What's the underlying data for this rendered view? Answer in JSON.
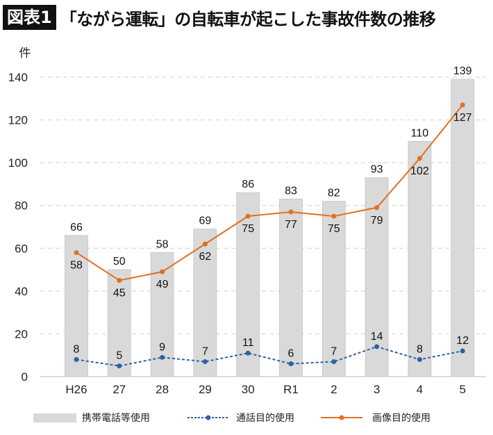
{
  "header": {
    "badge": "図表1",
    "title": "「ながら運転」の自転車が起こした事故件数の推移"
  },
  "chart_data": {
    "type": "bar",
    "title": "「ながら運転」の自転車が起こした事故件数の推移",
    "ylabel": "件",
    "xlabel": "",
    "ylim": [
      0,
      140
    ],
    "yticks": [
      0,
      20,
      40,
      60,
      80,
      100,
      120,
      140
    ],
    "grid": true,
    "legend_position": "bottom",
    "categories": [
      "H26",
      "27",
      "28",
      "29",
      "30",
      "R1",
      "2",
      "3",
      "4",
      "5"
    ],
    "series": [
      {
        "name": "携帯電話等使用",
        "type": "bar",
        "color": "#d9d9d9",
        "values": [
          66,
          50,
          58,
          69,
          86,
          83,
          82,
          93,
          110,
          139
        ]
      },
      {
        "name": "通話目的使用",
        "type": "line",
        "style": "dotted",
        "color": "#2f5fa8",
        "values": [
          8,
          5,
          9,
          7,
          11,
          6,
          7,
          14,
          8,
          12
        ]
      },
      {
        "name": "画像目的使用",
        "type": "line",
        "style": "solid",
        "color": "#e07020",
        "values": [
          58,
          45,
          49,
          62,
          75,
          77,
          75,
          79,
          102,
          127
        ]
      }
    ]
  }
}
